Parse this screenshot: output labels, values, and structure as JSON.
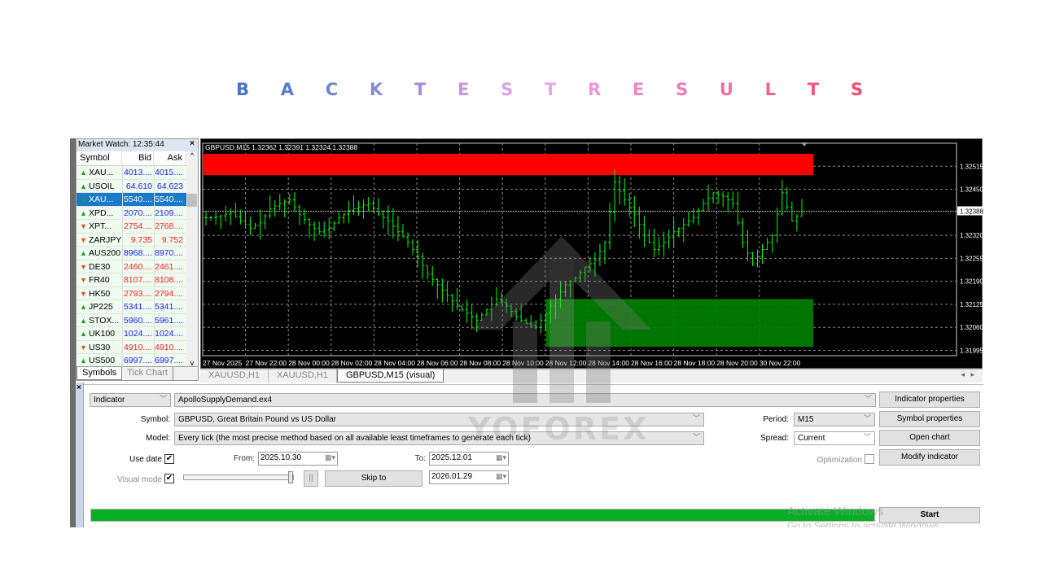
{
  "title_letters": [
    {
      "ch": "B",
      "color": "#4a74c4"
    },
    {
      "ch": "A",
      "color": "#5a7ccc"
    },
    {
      "ch": "C",
      "color": "#7088d0"
    },
    {
      "ch": "K",
      "color": "#8a8cd2"
    },
    {
      "ch": "T",
      "color": "#a48cdc"
    },
    {
      "ch": "E",
      "color": "#c497e0"
    },
    {
      "ch": "S",
      "color": "#d9a0e8"
    },
    {
      "ch": "T",
      "color": "#e6a8ea"
    },
    {
      "ch": "R",
      "color": "#ec98d6"
    },
    {
      "ch": "E",
      "color": "#ef88c4"
    },
    {
      "ch": "S",
      "color": "#f07ab8"
    },
    {
      "ch": "U",
      "color": "#f26ea4"
    },
    {
      "ch": "L",
      "color": "#f46290"
    },
    {
      "ch": "T",
      "color": "#f6557c"
    },
    {
      "ch": "S",
      "color": "#f84a6a"
    }
  ],
  "market_watch": {
    "title": "Market Watch: 12:35:44",
    "close": "×",
    "columns": [
      "Symbol",
      "Bid",
      "Ask"
    ],
    "rows": [
      {
        "symbol": "XAU...",
        "bid": "4013....",
        "ask": "4015....",
        "dir": "up"
      },
      {
        "symbol": "USOIL",
        "bid": "64.610",
        "ask": "64.623",
        "dir": "up"
      },
      {
        "symbol": "XAU...",
        "bid": "5540....",
        "ask": "5540....",
        "dir": "up",
        "selected": true
      },
      {
        "symbol": "XPD...",
        "bid": "2070....",
        "ask": "2109....",
        "dir": "up"
      },
      {
        "symbol": "XPT...",
        "bid": "2754....",
        "ask": "2768....",
        "dir": "down"
      },
      {
        "symbol": "ZARJPY",
        "bid": "9.735",
        "ask": "9.752",
        "dir": "down"
      },
      {
        "symbol": "AUS200",
        "bid": "8968....",
        "ask": "8970....",
        "dir": "up"
      },
      {
        "symbol": "DE30",
        "bid": "2460....",
        "ask": "2461....",
        "dir": "down"
      },
      {
        "symbol": "FR40",
        "bid": "8107....",
        "ask": "8108....",
        "dir": "down"
      },
      {
        "symbol": "HK50",
        "bid": "2793....",
        "ask": "2794....",
        "dir": "down"
      },
      {
        "symbol": "JP225",
        "bid": "5341....",
        "ask": "5341....",
        "dir": "up"
      },
      {
        "symbol": "STOX...",
        "bid": "5960....",
        "ask": "5961....",
        "dir": "up"
      },
      {
        "symbol": "UK100",
        "bid": "1024....",
        "ask": "1024....",
        "dir": "up"
      },
      {
        "symbol": "US30",
        "bid": "4910....",
        "ask": "4910....",
        "dir": "down"
      },
      {
        "symbol": "US500",
        "bid": "6997....",
        "ask": "6997....",
        "dir": "up"
      }
    ],
    "tabs": [
      "Symbols",
      "Tick Chart"
    ]
  },
  "chart_tabs": [
    "XAUUSD,H1",
    "XAUUSD,H1",
    "GBPUSD,M15 (visual)"
  ],
  "chart_data": {
    "type": "candlestick",
    "header": "GBPUSD,M15  1.32362 1.32391 1.32324 1.32388",
    "current_price": "1.32388",
    "price_ticks": [
      "1.32515",
      "1.32450",
      "1.32388",
      "1.32320",
      "1.32255",
      "1.32190",
      "1.32125",
      "1.32060",
      "1.31995"
    ],
    "ylim": [
      1.3198,
      1.3258
    ],
    "time_ticks": [
      "27 Nov 2025",
      "27 Nov 22:00",
      "28 Nov 00:00",
      "28 Nov 02:00",
      "28 Nov 04:00",
      "28 Nov 06:00",
      "28 Nov 08:00",
      "28 Nov 10:00",
      "28 Nov 12:00",
      "28 Nov 14:00",
      "28 Nov 16:00",
      "28 Nov 18:00",
      "28 Nov 20:00",
      "30 Nov 22:00"
    ],
    "grid": true,
    "candle_color": "#00ff00",
    "closes": [
      1.3237,
      1.32375,
      1.32385,
      1.3236,
      1.3234,
      1.32355,
      1.32395,
      1.3241,
      1.3242,
      1.3238,
      1.3235,
      1.3233,
      1.3234,
      1.3237,
      1.3239,
      1.324,
      1.3241,
      1.3238,
      1.3236,
      1.3233,
      1.323,
      1.3226,
      1.3221,
      1.3218,
      1.3215,
      1.3212,
      1.321,
      1.3208,
      1.3211,
      1.3214,
      1.3212,
      1.3209,
      1.3207,
      1.3206,
      1.321,
      1.3214,
      1.3218,
      1.322,
      1.3223,
      1.3225,
      1.323,
      1.3247,
      1.3242,
      1.3238,
      1.3232,
      1.3228,
      1.323,
      1.3233,
      1.3235,
      1.3237,
      1.3241,
      1.3244,
      1.3243,
      1.3241,
      1.323,
      1.3224,
      1.3228,
      1.3232,
      1.3244,
      1.3236,
      1.32388
    ],
    "zones": [
      {
        "type": "supply",
        "from": 1.3249,
        "to": 1.3255,
        "color": "#ff0000"
      },
      {
        "type": "demand",
        "from": 1.32005,
        "to": 1.3214,
        "color": "#008000"
      }
    ]
  },
  "tester": {
    "close": "×",
    "type": "Indicator",
    "program": "ApolloSupplyDemand.ex4",
    "symbol_label": "Symbol:",
    "symbol": "GBPUSD, Great Britain Pound vs US Dollar",
    "model_label": "Model:",
    "model": "Every tick (the most precise method based on all available least timeframes to generate each tick)",
    "use_date_label": "Use date",
    "use_date": true,
    "from_label": "From:",
    "from": "2025.10.30",
    "to_label": "To:",
    "to": "2025.12.01",
    "visual_mode_label": "Visual mode",
    "visual_mode": true,
    "visual_speed": 100,
    "pause": "||",
    "skip_to": "Skip to",
    "skip_date": "2026.01.29",
    "period_label": "Period:",
    "period": "M15",
    "spread_label": "Spread:",
    "spread": "Current",
    "optimization_label": "Optimization",
    "optimization": false,
    "buttons": [
      "Indicator properties",
      "Symbol properties",
      "Open chart",
      "Modify indicator"
    ],
    "start": "Start",
    "progress_percent": 100,
    "progress_color": "#06b025"
  },
  "watermark": "YOFOREX",
  "os_overlay": {
    "line1": "Activate Windows",
    "line2": "Go to Settings to activate Windows."
  }
}
